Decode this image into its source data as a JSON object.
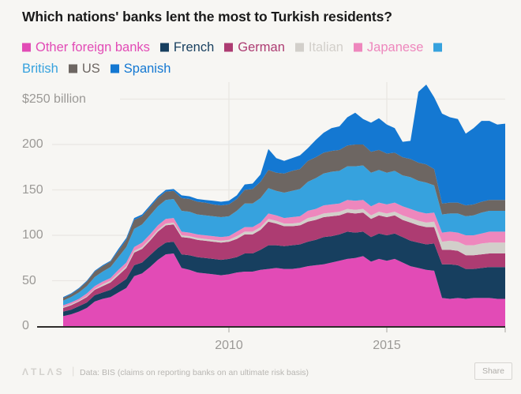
{
  "title": "Which nations' banks lent the most to Turkish residents?",
  "legend": {
    "items": [
      {
        "label": "Other foreign banks",
        "color": "#e24bb6"
      },
      {
        "label": "French",
        "color": "#173f5f"
      },
      {
        "label": "German",
        "color": "#ad3c72"
      },
      {
        "label": "Italian",
        "color": "#d2cfca"
      },
      {
        "label": "Japanese",
        "color": "#ee87bd"
      },
      {
        "label": "British",
        "color": "#36a2de"
      },
      {
        "label": "US",
        "color": "#6d6662"
      },
      {
        "label": "Spanish",
        "color": "#1478d2"
      }
    ]
  },
  "chart_data": {
    "type": "area",
    "stacked": true,
    "title": "Which nations' banks lent the most to Turkish residents?",
    "unit": "USD billions",
    "x_start": 2004.75,
    "x_step": 0.25,
    "x_tick_labels": [
      {
        "label": "2010",
        "year": 2010
      },
      {
        "label": "2015",
        "year": 2015
      }
    ],
    "x_gridlines": [
      2010,
      2015
    ],
    "ylim": [
      0,
      270
    ],
    "y_ticks": [
      {
        "value": 0,
        "label": "0"
      },
      {
        "value": 50,
        "label": "50"
      },
      {
        "value": 100,
        "label": "100"
      },
      {
        "value": 150,
        "label": "150"
      },
      {
        "value": 200,
        "label": "200"
      },
      {
        "value": 250,
        "label": "$250 billion"
      }
    ],
    "grid": true,
    "legend_position": "top",
    "series": [
      {
        "name": "Other foreign banks",
        "color": "#e24bb6",
        "values": [
          11,
          13,
          16,
          20,
          27,
          30,
          32,
          37,
          42,
          55,
          58,
          65,
          73,
          79,
          80,
          64,
          62,
          59,
          58,
          57,
          56,
          57,
          59,
          60,
          60,
          62,
          63,
          64,
          63,
          63,
          64,
          66,
          67,
          68,
          70,
          72,
          74,
          75,
          77,
          71,
          74,
          72,
          74,
          70,
          66,
          64,
          62,
          61,
          31,
          30,
          31,
          30,
          31,
          31,
          31,
          30,
          30
        ]
      },
      {
        "name": "French",
        "color": "#173f5f",
        "values": [
          5,
          5,
          6,
          6,
          7,
          7,
          8,
          9,
          10,
          12,
          12,
          13,
          13,
          13,
          13,
          15,
          16,
          17,
          17,
          17,
          17,
          17,
          17,
          20,
          20,
          22,
          26,
          25,
          25,
          26,
          26,
          27,
          28,
          30,
          29,
          29,
          30,
          28,
          27,
          27,
          28,
          28,
          28,
          28,
          28,
          28,
          28,
          30,
          37,
          38,
          36,
          33,
          32,
          33,
          34,
          35,
          35
        ]
      },
      {
        "name": "German",
        "color": "#ad3c72",
        "values": [
          4,
          5,
          5,
          6,
          6,
          7,
          8,
          10,
          12,
          14,
          15,
          16,
          18,
          19,
          19,
          19,
          19,
          19,
          19,
          19,
          19,
          19,
          20,
          21,
          21,
          22,
          26,
          24,
          22,
          21,
          21,
          22,
          22,
          22,
          22,
          21,
          21,
          21,
          21,
          20,
          20,
          20,
          20,
          19,
          20,
          19,
          19,
          18,
          16,
          16,
          16,
          15,
          15,
          15,
          15,
          15,
          15
        ]
      },
      {
        "name": "Italian",
        "color": "#d2cfca",
        "values": [
          1,
          1,
          1,
          1,
          1,
          2,
          2,
          2,
          2,
          2,
          2,
          2,
          2,
          2,
          2,
          2,
          2,
          2,
          2,
          2,
          2,
          2,
          3,
          3,
          3,
          3,
          3,
          3,
          3,
          3,
          3,
          4,
          4,
          4,
          4,
          4,
          4,
          4,
          4,
          4,
          4,
          4,
          4,
          5,
          5,
          5,
          5,
          6,
          9,
          10,
          10,
          11,
          11,
          12,
          12,
          12,
          12
        ]
      },
      {
        "name": "Japanese",
        "color": "#ee87bd",
        "values": [
          2,
          2,
          2,
          3,
          3,
          3,
          3,
          4,
          4,
          4,
          5,
          5,
          5,
          5,
          5,
          4,
          4,
          4,
          4,
          4,
          4,
          4,
          5,
          5,
          5,
          5,
          6,
          6,
          6,
          7,
          7,
          8,
          8,
          9,
          9,
          9,
          10,
          10,
          10,
          10,
          10,
          10,
          10,
          10,
          10,
          10,
          10,
          10,
          10,
          10,
          10,
          11,
          11,
          11,
          12,
          12,
          12
        ]
      },
      {
        "name": "British",
        "color": "#36a2de",
        "values": [
          5,
          6,
          7,
          8,
          10,
          11,
          12,
          14,
          17,
          20,
          20,
          21,
          21,
          21,
          21,
          23,
          23,
          22,
          22,
          22,
          22,
          22,
          23,
          26,
          26,
          27,
          28,
          27,
          28,
          29,
          30,
          32,
          34,
          35,
          36,
          36,
          37,
          38,
          38,
          37,
          36,
          35,
          35,
          34,
          35,
          34,
          34,
          30,
          20,
          20,
          21,
          21,
          22,
          23,
          23,
          23,
          23
        ]
      },
      {
        "name": "US",
        "color": "#6d6662",
        "values": [
          3,
          3,
          4,
          5,
          6,
          6,
          6,
          7,
          8,
          10,
          9,
          9,
          9,
          9,
          9,
          14,
          14,
          14,
          14,
          13,
          13,
          13,
          13,
          15,
          16,
          18,
          20,
          20,
          21,
          22,
          22,
          23,
          23,
          23,
          23,
          23,
          23,
          24,
          23,
          23,
          22,
          21,
          20,
          20,
          20,
          20,
          20,
          18,
          12,
          12,
          12,
          12,
          12,
          12,
          12,
          12,
          12
        ]
      },
      {
        "name": "Spanish",
        "color": "#1478d2",
        "values": [
          1,
          1,
          1,
          1,
          1,
          1,
          1,
          2,
          2,
          2,
          2,
          2,
          2,
          2,
          2,
          3,
          3,
          3,
          3,
          4,
          4,
          4,
          4,
          6,
          6,
          8,
          23,
          16,
          14,
          14,
          15,
          14,
          19,
          22,
          25,
          26,
          31,
          35,
          28,
          32,
          35,
          32,
          27,
          17,
          20,
          78,
          88,
          79,
          99,
          94,
          92,
          79,
          84,
          89,
          87,
          83,
          84
        ]
      }
    ]
  },
  "footer": {
    "brand": "ΛTLΛS",
    "divider": "|",
    "source": "Data: BIS (claims on reporting banks on an ultimate risk basis)",
    "share_label": "Share"
  }
}
